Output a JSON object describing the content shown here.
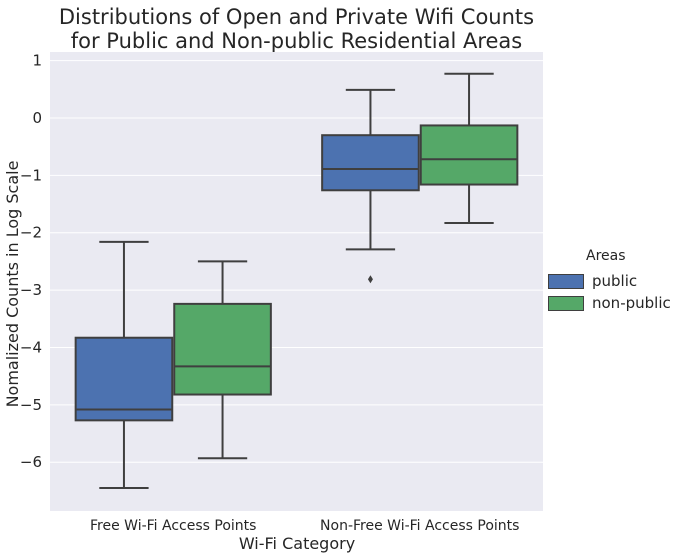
{
  "title_line1": "Distributions of Open and Private Wifi Counts",
  "title_line2": "for Public and Non-public Residential Areas",
  "colors": {
    "background": "#eaeaf2",
    "grid": "#ffffff",
    "public": "#4c72b0",
    "non_public": "#55a868",
    "edge": "#3f3f3f"
  },
  "legend": {
    "title": "Areas",
    "items": [
      "public",
      "non-public"
    ]
  },
  "chart_data": {
    "type": "boxplot",
    "xlabel": "Wi-Fi Category",
    "ylabel": "Nomalized Counts in Log Scale",
    "categories": [
      "Free Wi-Fi Access Points",
      "Non-Free Wi-Fi Access Points"
    ],
    "ylim": [
      -6.85,
      1.15
    ],
    "yticks": [
      1,
      0,
      -1,
      -2,
      -3,
      -4,
      -5,
      -6
    ],
    "grid": true,
    "legend_position": "right",
    "series": [
      {
        "name": "public",
        "color": "#4c72b0",
        "boxes": [
          {
            "whisker_low": -6.45,
            "q1": -5.27,
            "median": -5.08,
            "q3": -3.83,
            "whisker_high": -2.16,
            "outliers": []
          },
          {
            "whisker_low": -2.29,
            "q1": -1.26,
            "median": -0.89,
            "q3": -0.3,
            "whisker_high": 0.49,
            "outliers": [
              -2.81
            ]
          }
        ]
      },
      {
        "name": "non-public",
        "color": "#55a868",
        "boxes": [
          {
            "whisker_low": -5.93,
            "q1": -4.82,
            "median": -4.33,
            "q3": -3.24,
            "whisker_high": -2.5,
            "outliers": []
          },
          {
            "whisker_low": -1.83,
            "q1": -1.16,
            "median": -0.72,
            "q3": -0.13,
            "whisker_high": 0.77,
            "outliers": []
          }
        ]
      }
    ]
  }
}
